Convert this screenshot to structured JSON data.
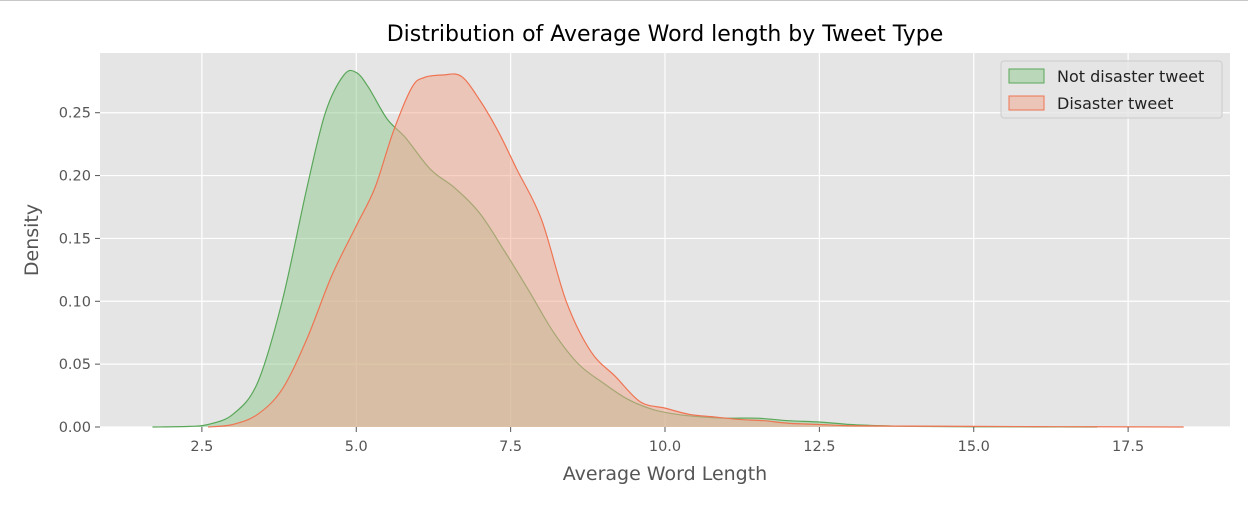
{
  "chart_data": {
    "type": "area",
    "title": "Distribution of Average Word length by Tweet Type",
    "xlabel": "Average Word Length",
    "ylabel": "Density",
    "xlim": [
      0.85,
      19.15
    ],
    "ylim": [
      0,
      0.2975
    ],
    "xticks": [
      2.5,
      5.0,
      7.5,
      10.0,
      12.5,
      15.0,
      17.5
    ],
    "xtick_labels": [
      "2.5",
      "5.0",
      "7.5",
      "10.0",
      "12.5",
      "15.0",
      "17.5"
    ],
    "yticks": [
      0.0,
      0.05,
      0.1,
      0.15,
      0.2,
      0.25
    ],
    "ytick_labels": [
      "0.00",
      "0.05",
      "0.10",
      "0.15",
      "0.20",
      "0.25"
    ],
    "grid": true,
    "legend_position": "top-right",
    "background": "#e5e5e5",
    "series": [
      {
        "name": "Not disaster tweet",
        "fill": "#91c98f",
        "stroke": "#5aa75a",
        "x": [
          1.7,
          2.3,
          2.6,
          3.0,
          3.4,
          3.8,
          4.2,
          4.5,
          4.8,
          5.0,
          5.2,
          5.5,
          5.8,
          6.2,
          6.6,
          7.0,
          7.4,
          7.8,
          8.2,
          8.6,
          9.0,
          9.4,
          9.8,
          10.2,
          10.6,
          11.0,
          11.5,
          12.0,
          12.5,
          13.0,
          13.5,
          14.0,
          15.0,
          16.0,
          17.0
        ],
        "y": [
          0.0,
          0.0005,
          0.002,
          0.01,
          0.035,
          0.1,
          0.19,
          0.25,
          0.28,
          0.282,
          0.27,
          0.245,
          0.23,
          0.205,
          0.19,
          0.17,
          0.14,
          0.108,
          0.075,
          0.05,
          0.035,
          0.022,
          0.014,
          0.01,
          0.008,
          0.007,
          0.007,
          0.005,
          0.004,
          0.002,
          0.001,
          0.0005,
          0.0002,
          0.0001,
          0.0
        ]
      },
      {
        "name": "Disaster tweet",
        "fill": "#f4a58e",
        "stroke": "#ee7553",
        "x": [
          2.6,
          3.0,
          3.4,
          3.8,
          4.2,
          4.6,
          5.0,
          5.3,
          5.6,
          5.9,
          6.1,
          6.4,
          6.7,
          7.0,
          7.3,
          7.6,
          8.0,
          8.4,
          8.8,
          9.2,
          9.6,
          10.0,
          10.4,
          10.8,
          11.2,
          11.6,
          12.0,
          12.5,
          13.0,
          14.0,
          15.0,
          16.0,
          17.0,
          18.4
        ],
        "y": [
          0.0,
          0.002,
          0.01,
          0.03,
          0.07,
          0.12,
          0.16,
          0.19,
          0.235,
          0.27,
          0.278,
          0.28,
          0.279,
          0.26,
          0.235,
          0.205,
          0.165,
          0.1,
          0.06,
          0.04,
          0.02,
          0.015,
          0.01,
          0.008,
          0.006,
          0.005,
          0.003,
          0.002,
          0.001,
          0.0007,
          0.0005,
          0.0003,
          0.0002,
          0.0
        ]
      }
    ]
  }
}
